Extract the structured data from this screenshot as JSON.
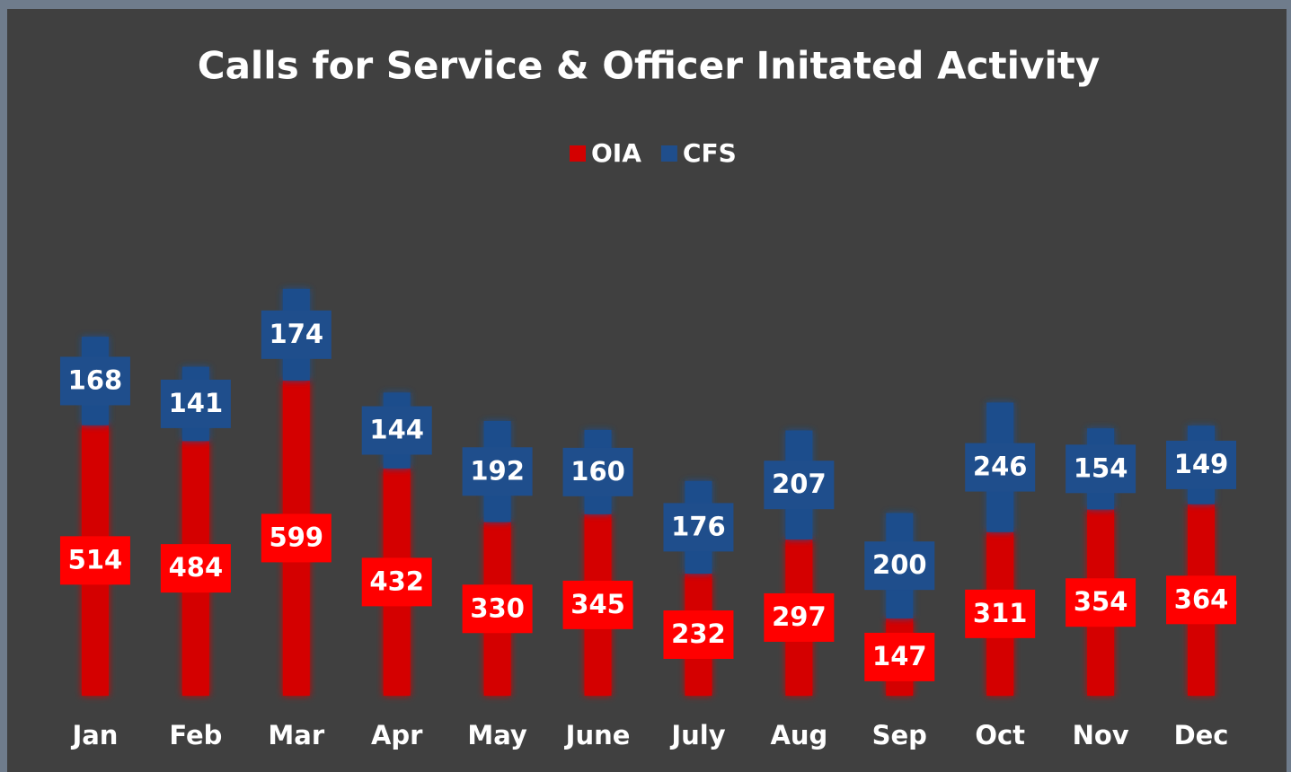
{
  "chart_data": {
    "type": "stacked_bar",
    "title": "Calls for Service & Officer Initated Activity",
    "categories": [
      "Jan",
      "Feb",
      "Mar",
      "Apr",
      "May",
      "June",
      "July",
      "Aug",
      "Sep",
      "Oct",
      "Nov",
      "Dec"
    ],
    "series": [
      {
        "name": "OIA",
        "color": "#d40000",
        "label_color": "#ff0000",
        "values": [
          514,
          484,
          599,
          432,
          330,
          345,
          232,
          297,
          147,
          311,
          354,
          364
        ]
      },
      {
        "name": "CFS",
        "color": "#1f4e8c",
        "label_color": "#1f4e8c",
        "values": [
          168,
          141,
          174,
          144,
          192,
          160,
          176,
          207,
          200,
          246,
          154,
          149
        ]
      }
    ],
    "ylim": [
      0,
      800
    ],
    "legend": "top"
  }
}
